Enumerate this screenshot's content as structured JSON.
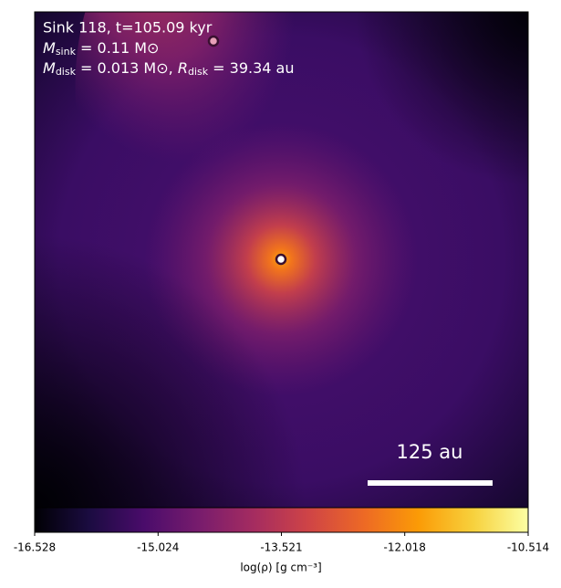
{
  "chart_data": {
    "type": "colormap-image",
    "annotations": [
      {
        "text": "Sink 118, t=105.09 kyr"
      },
      {
        "symbol": "M",
        "sub": "sink",
        "text": " = 0.11 M⊙"
      },
      {
        "symbol": "M",
        "sub": "disk",
        "text": " = 0.013 M⊙, ",
        "symbol2": "R",
        "sub2": "disk",
        "text2": " = 39.34 au"
      }
    ],
    "scale_bar_label": "125 au",
    "cmap": "inferno",
    "colorbar": {
      "clim": [
        -16.528,
        -10.514
      ],
      "ticks": [
        -16.528,
        -15.024,
        -13.521,
        -12.018,
        -10.514
      ],
      "label": "log(ρ) [g cm⁻³]"
    }
  }
}
